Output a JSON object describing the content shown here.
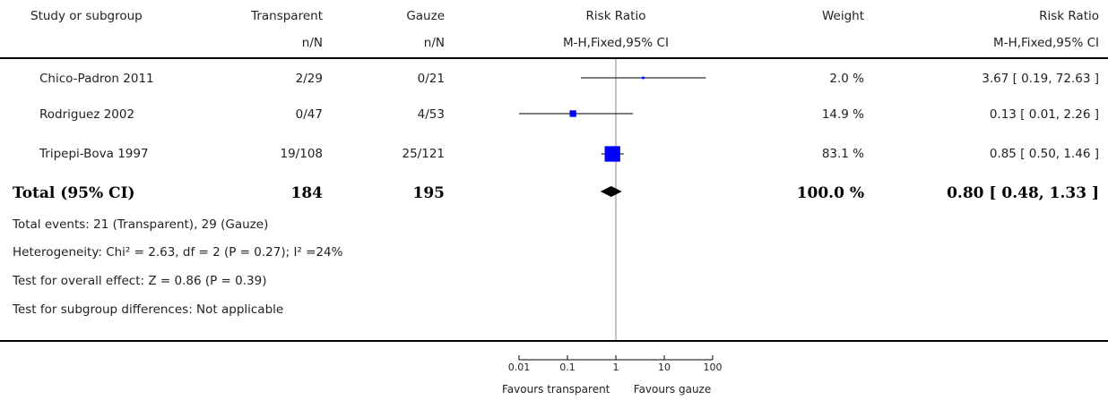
{
  "header": {
    "study_col": "Study or subgroup",
    "exp_col": "Transparent",
    "exp_sub": "n/N",
    "ctrl_col": "Gauze",
    "ctrl_sub": "n/N",
    "rr_col": "Risk Ratio",
    "rr_sub": "M-H,Fixed,95% CI",
    "weight_col": "Weight",
    "rr2_col": "Risk Ratio",
    "rr2_sub": "M-H,Fixed,95% CI"
  },
  "studies": [
    {
      "name": "Chico-Padron 2011",
      "exp": "2/29",
      "ctrl": "0/21",
      "weight": "2.0 %",
      "ci_text": "3.67 [ 0.19, 72.63 ]"
    },
    {
      "name": "Rodriguez 2002",
      "exp": "0/47",
      "ctrl": "4/53",
      "weight": "14.9 %",
      "ci_text": "0.13 [ 0.01, 2.26 ]"
    },
    {
      "name": "Tripepi-Bova 1997",
      "exp": "19/108",
      "ctrl": "25/121",
      "weight": "83.1 %",
      "ci_text": "0.85 [ 0.50, 1.46 ]"
    }
  ],
  "total": {
    "label": "Total (95% CI)",
    "exp": "184",
    "ctrl": "195",
    "weight": "100.0 %",
    "ci_text": "0.80 [ 0.48, 1.33 ]"
  },
  "notes": {
    "events": "Total events: 21 (Transparent), 29 (Gauze)",
    "heterogeneity": "Heterogeneity: Chi² = 2.63, df = 2 (P = 0.27); I² =24%",
    "overall": "Test for overall effect: Z = 0.86 (P = 0.39)",
    "subgroup": "Test for subgroup differences: Not applicable"
  },
  "axis": {
    "favours_left": "Favours transparent",
    "favours_right": "Favours gauze"
  },
  "chart_data": {
    "type": "scatter",
    "x_scale": "log",
    "xlim": [
      0.01,
      100
    ],
    "ticks": [
      0.01,
      0.1,
      1,
      10,
      100
    ],
    "tick_labels": [
      "0.01",
      "0.1",
      "1",
      "10",
      "100"
    ],
    "series": [
      {
        "points": [
          {
            "study": "Chico-Padron 2011",
            "rr": 3.67,
            "lo": 0.19,
            "hi": 72.63,
            "weight": 2.0
          },
          {
            "study": "Rodriguez 2002",
            "rr": 0.13,
            "lo": 0.01,
            "hi": 2.26,
            "weight": 14.9
          },
          {
            "study": "Tripepi-Bova 1997",
            "rr": 0.85,
            "lo": 0.5,
            "hi": 1.46,
            "weight": 83.1
          }
        ]
      }
    ],
    "pooled": {
      "rr": 0.8,
      "lo": 0.48,
      "hi": 1.33
    },
    "marker_color": "#0000ff"
  }
}
